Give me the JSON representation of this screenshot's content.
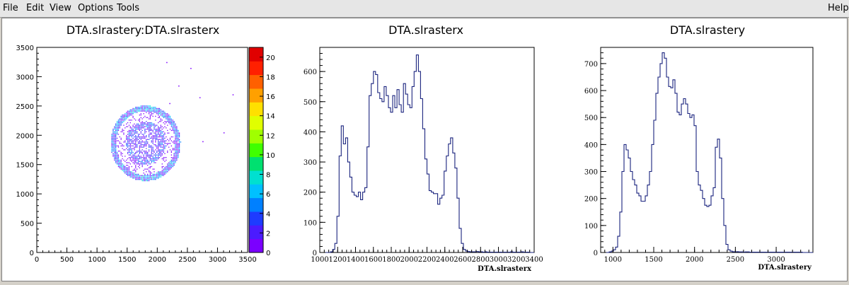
{
  "menu": {
    "file": "File",
    "edit": "Edit",
    "view": "View",
    "options": "Options",
    "tools": "Tools",
    "help": "Help"
  },
  "colors": {
    "hist_line": "#1a237e",
    "frame": "#000000"
  },
  "chart_data": [
    {
      "type": "heatmap",
      "title": "DTA.slrastery:DTA.slrasterx",
      "xlabel": "",
      "ylabel": "",
      "xlim": [
        0,
        3500
      ],
      "ylim": [
        0,
        3500
      ],
      "x_ticks": [
        0,
        500,
        1000,
        1500,
        2000,
        2500,
        3000,
        3500
      ],
      "y_ticks": [
        0,
        500,
        1000,
        1500,
        2000,
        2500,
        3000,
        3500
      ],
      "colorbar": {
        "min": 0,
        "max": 21,
        "ticks": [
          0,
          2,
          4,
          6,
          8,
          10,
          12,
          14,
          16,
          18,
          20
        ],
        "palette": [
          "#7b00ff",
          "#4b1bff",
          "#1e3cff",
          "#0080ff",
          "#00c0ff",
          "#00e0d0",
          "#00e070",
          "#40ff00",
          "#a0ff00",
          "#e0ff00",
          "#ffe000",
          "#ffa000",
          "#ff6000",
          "#ff2000",
          "#e00000"
        ]
      },
      "features": {
        "center": [
          1800,
          1850
        ],
        "outer_ring": {
          "rx": 560,
          "ry": 620
        },
        "core": {
          "rx": 330,
          "ry": 370
        },
        "outliers": [
          [
            2150,
            3250
          ],
          [
            2550,
            3150
          ],
          [
            2700,
            2650
          ],
          [
            3250,
            2700
          ],
          [
            3100,
            2050
          ],
          [
            2750,
            1900
          ],
          [
            2200,
            2550
          ],
          [
            2350,
            2850
          ]
        ]
      }
    },
    {
      "type": "bar",
      "title": "DTA.slrasterx",
      "xlabel": "DTA.slrasterx",
      "ylabel": "",
      "xlim": [
        1000,
        3400
      ],
      "ylim": [
        0,
        680
      ],
      "x_ticks": [
        1000,
        1200,
        1400,
        1600,
        1800,
        2000,
        2200,
        2400,
        2600,
        2800,
        3000,
        3200,
        3400
      ],
      "y_ticks": [
        0,
        100,
        200,
        300,
        400,
        500,
        600
      ],
      "bin_start": 1000,
      "bin_width": 24,
      "values": [
        0,
        0,
        0,
        0,
        0,
        2,
        10,
        30,
        120,
        320,
        420,
        360,
        380,
        300,
        250,
        200,
        190,
        185,
        200,
        175,
        200,
        215,
        350,
        520,
        560,
        600,
        590,
        530,
        510,
        500,
        550,
        520,
        480,
        465,
        520,
        480,
        540,
        490,
        465,
        560,
        525,
        490,
        480,
        550,
        600,
        655,
        600,
        510,
        410,
        310,
        260,
        205,
        200,
        195,
        195,
        160,
        180,
        190,
        270,
        320,
        360,
        380,
        330,
        280,
        180,
        80,
        30,
        10,
        5,
        3,
        2,
        2,
        2,
        3,
        2,
        2,
        1,
        2,
        1,
        1,
        1,
        1,
        1,
        1,
        1,
        1,
        1,
        1,
        1,
        2,
        1,
        1,
        1,
        1,
        2,
        1,
        1,
        1,
        0,
        0
      ]
    },
    {
      "type": "bar",
      "title": "DTA.slrastery",
      "xlabel": "DTA.slrastery",
      "ylabel": "",
      "xlim": [
        850,
        3450
      ],
      "ylim": [
        0,
        760
      ],
      "x_ticks": [
        1000,
        1500,
        2000,
        2500,
        3000
      ],
      "y_ticks": [
        0,
        100,
        200,
        300,
        400,
        500,
        600,
        700
      ],
      "bin_start": 850,
      "bin_width": 26,
      "values": [
        0,
        0,
        0,
        0,
        2,
        5,
        10,
        20,
        60,
        150,
        300,
        400,
        380,
        350,
        300,
        270,
        250,
        220,
        210,
        190,
        190,
        210,
        250,
        300,
        400,
        490,
        590,
        650,
        700,
        740,
        720,
        650,
        615,
        610,
        640,
        590,
        520,
        510,
        550,
        570,
        550,
        515,
        500,
        510,
        470,
        300,
        250,
        230,
        200,
        175,
        170,
        175,
        210,
        240,
        390,
        420,
        350,
        200,
        100,
        30,
        10,
        5,
        3,
        2,
        3,
        2,
        2,
        1,
        2,
        2,
        1,
        1,
        1,
        1,
        1,
        1,
        1,
        1,
        1,
        1,
        1,
        1,
        1,
        1,
        1,
        1,
        1,
        1,
        1,
        1,
        1,
        1,
        1,
        1,
        1,
        0,
        0,
        0,
        0,
        0
      ]
    }
  ]
}
